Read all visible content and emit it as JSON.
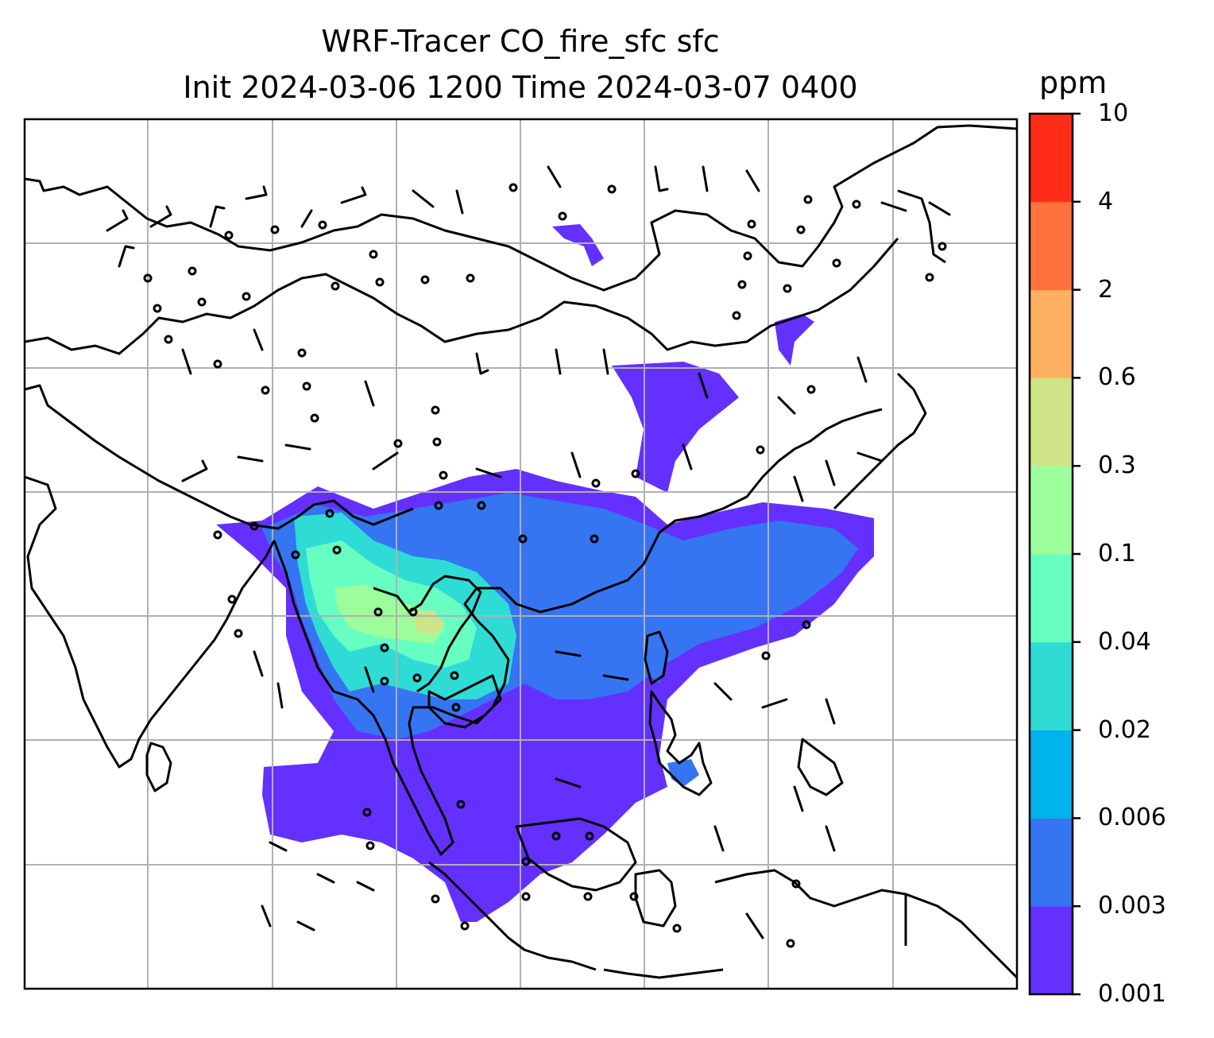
{
  "title": {
    "line1": "WRF-Tracer CO_fire_sfc sfc",
    "line2": "Init 2024-03-06 1200 Time 2024-03-07 0400"
  },
  "colorbar": {
    "unit": "ppm",
    "levels": [
      "0.001",
      "0.003",
      "0.006",
      "0.02",
      "0.04",
      "0.1",
      "0.3",
      "0.6",
      "2",
      "4",
      "10"
    ],
    "colors": [
      "#6430ff",
      "#3575f2",
      "#00b3ea",
      "#2fdcd5",
      "#66ffc1",
      "#9cff9c",
      "#cfe389",
      "#fdb062",
      "#ff723c",
      "#ff2d18"
    ]
  },
  "map": {
    "type": "wrf-tracer-map",
    "variable": "CO_fire_sfc",
    "gridlines": true,
    "coastline_color": "#000000",
    "wind_barbs": true
  }
}
